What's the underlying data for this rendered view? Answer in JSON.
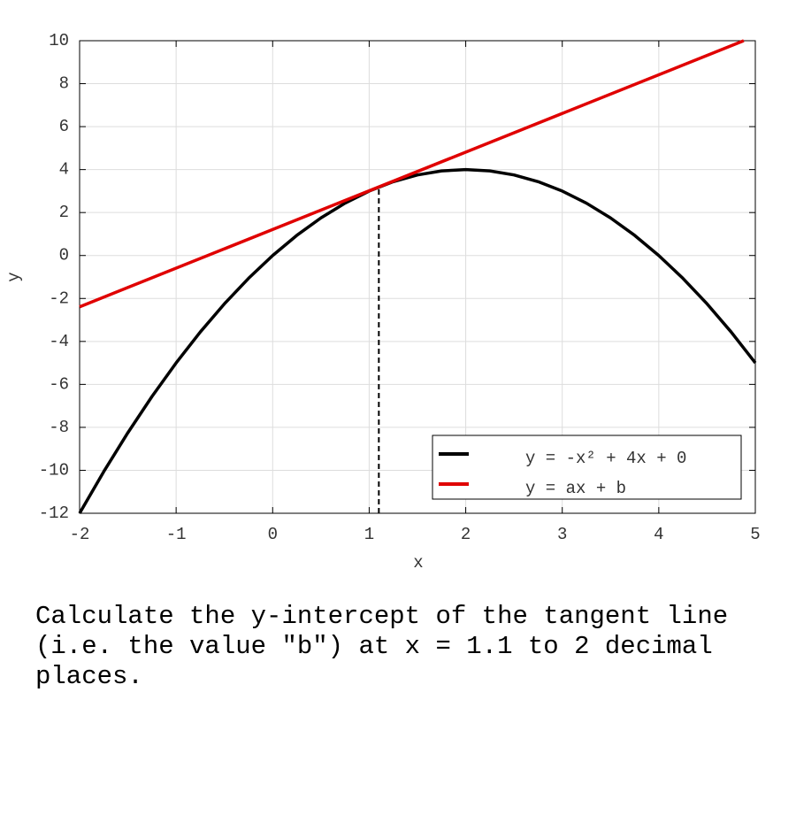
{
  "chart_data": {
    "type": "line",
    "xlabel": "x",
    "ylabel": "y",
    "xlim": [
      -2,
      5
    ],
    "ylim": [
      -12,
      10
    ],
    "xticks": [
      -2,
      -1,
      0,
      1,
      2,
      3,
      4,
      5
    ],
    "yticks": [
      -12,
      -10,
      -8,
      -6,
      -4,
      -2,
      0,
      2,
      4,
      6,
      8,
      10
    ],
    "grid": true,
    "legend": "lower right",
    "series": [
      {
        "name": "y = -x² + 4x + 0",
        "color": "#000000",
        "x": [
          -2,
          -1.75,
          -1.5,
          -1.25,
          -1,
          -0.75,
          -0.5,
          -0.25,
          0,
          0.25,
          0.5,
          0.75,
          1,
          1.25,
          1.5,
          1.75,
          2,
          2.25,
          2.5,
          2.75,
          3,
          3.25,
          3.5,
          3.75,
          4,
          4.25,
          4.5,
          4.75,
          5
        ],
        "values": [
          -12,
          -10.0625,
          -8.25,
          -6.5625,
          -5,
          -3.5625,
          -2.25,
          -1.0625,
          0,
          0.9375,
          1.75,
          2.4375,
          3,
          3.4375,
          3.75,
          3.9375,
          4,
          3.9375,
          3.75,
          3.4375,
          3,
          2.4375,
          1.75,
          0.9375,
          0,
          -1.0625,
          -2.25,
          -3.5625,
          -5
        ]
      },
      {
        "name": "y = ax + b",
        "color": "#e00000",
        "x": [
          -2,
          4.88
        ],
        "values": [
          -2.39,
          10
        ]
      }
    ],
    "vline": {
      "x": 1.1,
      "y_top": 3.19,
      "color": "#000000"
    }
  },
  "question": "Calculate the y-intercept of the tangent line (i.e. the value \"b\") at x = 1.1 to 2 decimal places."
}
